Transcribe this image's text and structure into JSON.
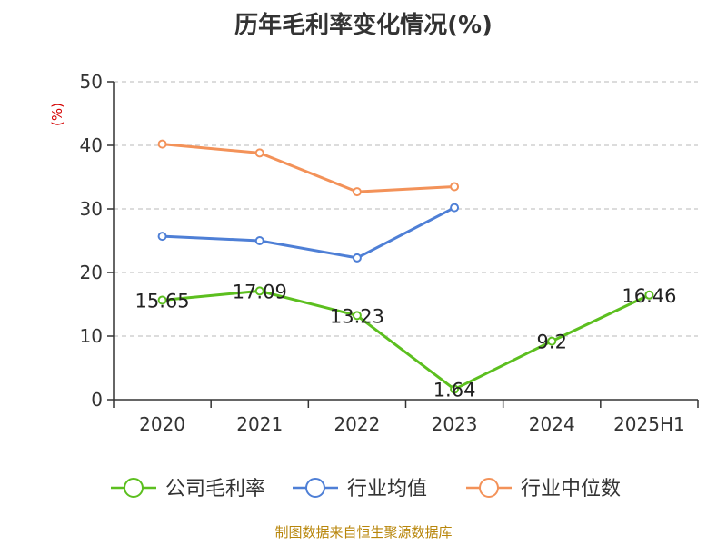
{
  "chart_data": {
    "type": "line",
    "title": "历年毛利率变化情况(%)",
    "ylabel": "(%)",
    "categories": [
      "2020",
      "2021",
      "2022",
      "2023",
      "2024",
      "2025H1"
    ],
    "ylim": [
      0,
      50
    ],
    "yticks": [
      0,
      10,
      20,
      30,
      40,
      50
    ],
    "grid": true,
    "legend_position": "bottom",
    "series": [
      {
        "name": "公司毛利率",
        "color": "#5cbf1f",
        "values": [
          15.65,
          17.09,
          13.23,
          1.64,
          9.2,
          16.46
        ],
        "labels": [
          "15.65",
          "17.09",
          "13.23",
          "1.64",
          "9.2",
          "16.46"
        ]
      },
      {
        "name": "行业均值",
        "color": "#4e7fd6",
        "values": [
          25.7,
          25.0,
          22.3,
          30.2,
          null,
          null
        ]
      },
      {
        "name": "行业中位数",
        "color": "#f39259",
        "values": [
          40.2,
          38.8,
          32.7,
          33.5,
          null,
          null
        ]
      }
    ]
  },
  "source": "制图数据来自恒生聚源数据库"
}
